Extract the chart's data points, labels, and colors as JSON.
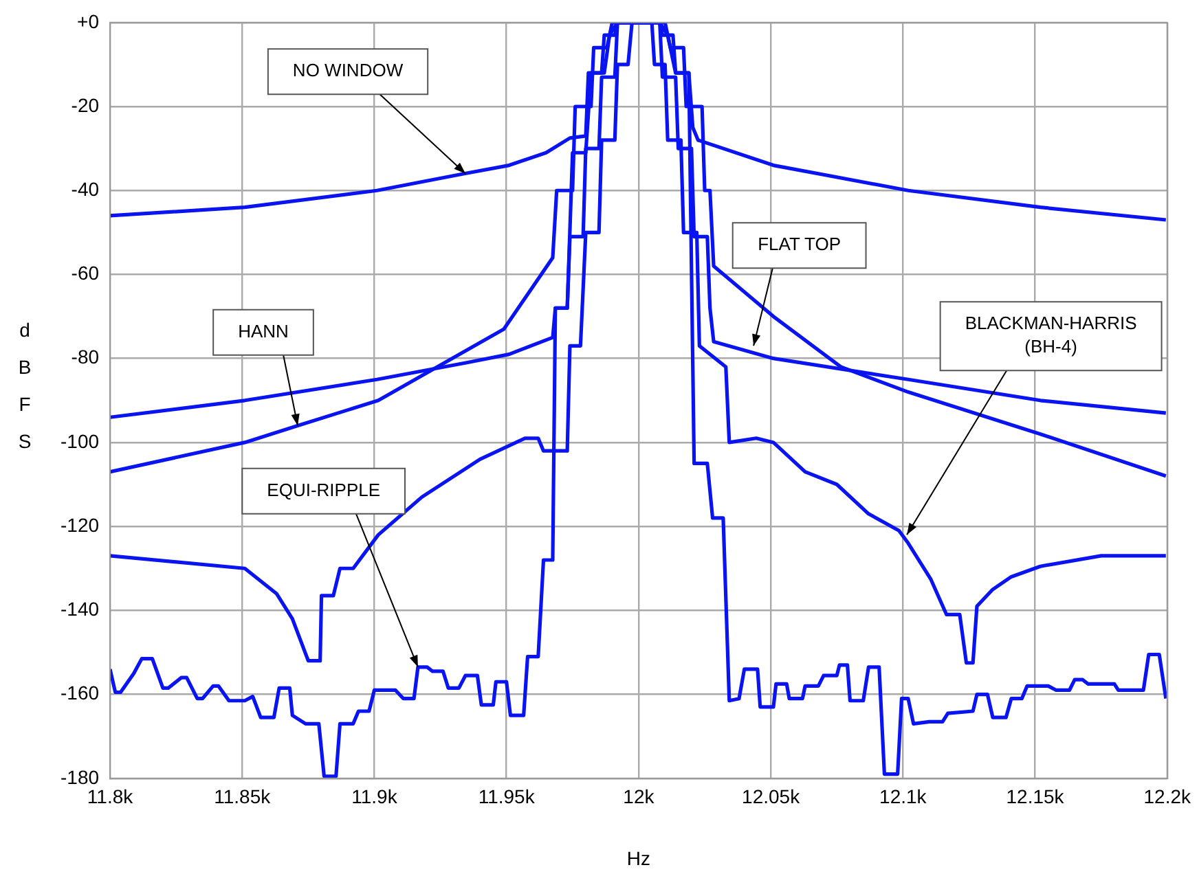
{
  "chart_data": {
    "type": "line",
    "xlabel": "Hz",
    "ylabel": "dBFS",
    "xlim": [
      11800,
      12200
    ],
    "ylim": [
      -180,
      0
    ],
    "xticks": [
      {
        "value": 11800,
        "label": "11.8k"
      },
      {
        "value": 11850,
        "label": "11.85k"
      },
      {
        "value": 11900,
        "label": "11.9k"
      },
      {
        "value": 11950,
        "label": "11.95k"
      },
      {
        "value": 12000,
        "label": "12k"
      },
      {
        "value": 12050,
        "label": "12.05k"
      },
      {
        "value": 12100,
        "label": "12.1k"
      },
      {
        "value": 12150,
        "label": "12.15k"
      },
      {
        "value": 12200,
        "label": "12.2k"
      }
    ],
    "yticks": [
      {
        "value": 0,
        "label": "+0"
      },
      -20,
      -40,
      -60,
      -80,
      -100,
      -120,
      -140,
      -160,
      -180
    ],
    "grid": true,
    "legend": false,
    "series": [
      {
        "color": "#0a14f0",
        "x": [
          11800,
          11851,
          11901,
          11934,
          11951,
          11965,
          11974,
          11980,
          11981,
          11986,
          11987,
          11991,
          11992,
          12008,
          12009,
          12013,
          12014,
          12019,
          12020.5,
          12022.5,
          12051,
          12102,
          12152,
          12199.5
        ],
        "values": [
          -46,
          -44,
          -40,
          -36,
          -34,
          -31,
          -27.5,
          -27,
          -12,
          -12,
          -3,
          -3,
          0,
          0,
          -3,
          -3,
          -12,
          -12,
          -25,
          -28,
          -34,
          -40,
          -44,
          -47
        ]
      },
      {
        "color": "#0a14f0",
        "x": [
          11800,
          11851,
          11901,
          11935,
          11951,
          11967.5,
          11968.5,
          11973,
          11974,
          11979,
          11980,
          11985,
          11986,
          11991,
          11992,
          12008,
          12009,
          12014,
          12015,
          12020,
          12021,
          12026,
          12027,
          12028.4,
          12051,
          12102,
          12152,
          12199.5
        ],
        "values": [
          -94,
          -90,
          -85,
          -81,
          -79,
          -75,
          -68,
          -68,
          -51,
          -51,
          -30,
          -30,
          -13,
          -13,
          0,
          0,
          -13,
          -13,
          -30,
          -30,
          -51,
          -51,
          -68,
          -76,
          -80,
          -85,
          -90,
          -93
        ]
      },
      {
        "color": "#0a14f0",
        "x": [
          11800,
          11851,
          11871,
          11901.5,
          11949,
          11967.5,
          11969,
          11975,
          11976,
          11982,
          11983,
          11988,
          11990,
          12010,
          12012,
          12017,
          12018,
          12024,
          12025,
          12027,
          12028.4,
          12051,
          12076.5,
          12102,
          12152,
          12199.5
        ],
        "values": [
          -107,
          -100,
          -96,
          -90,
          -73,
          -56,
          -40,
          -40,
          -20,
          -20,
          -6,
          -6,
          0,
          0,
          -6,
          -6,
          -20,
          -20,
          -40,
          -40,
          -58,
          -70,
          -82,
          -88,
          -98,
          -108
        ]
      },
      {
        "color": "#0a14f0",
        "x": [
          11800,
          11851,
          11863,
          11869,
          11875,
          11879.5,
          11880,
          11884.5,
          11887,
          11892,
          11901.5,
          11918,
          11940,
          11957,
          11962,
          11964,
          11967.5,
          11973,
          11974,
          11978,
          11980,
          11985,
          11986,
          11991,
          11992,
          11996,
          11997.5,
          12005,
          12006,
          12010,
          12011,
          12016,
          12017,
          12022,
          12023,
          12033,
          12034.3,
          12044.5,
          12051,
          12063,
          12075,
          12087,
          12098.5,
          12102,
          12110.5,
          12116.5,
          12121.5,
          12124,
          12126.5,
          12128,
          12134,
          12141,
          12152,
          12175,
          12199.5
        ],
        "values": [
          -127,
          -130,
          -136,
          -142,
          -152,
          -152,
          -136.5,
          -136.5,
          -130,
          -130,
          -122,
          -113,
          -104,
          -99,
          -99,
          -102,
          -102,
          -102,
          -77,
          -77,
          -50,
          -50,
          -28,
          -28,
          -10,
          -10,
          0,
          0,
          -10,
          -10,
          -28,
          -28,
          -50,
          -50,
          -77,
          -82,
          -100,
          -99,
          -100,
          -107,
          -110,
          -117,
          -121,
          -124,
          -132.5,
          -141,
          -141,
          -152.5,
          -152.5,
          -139,
          -135,
          -132,
          -129.5,
          -127,
          -127
        ]
      },
      {
        "color": "#0a14f0",
        "x": [
          11800,
          11802,
          11804,
          11809,
          11812,
          11816,
          11820,
          11822,
          11827,
          11829,
          11833,
          11835,
          11839,
          11841,
          11845,
          11851,
          11854,
          11857,
          11862,
          11864,
          11868,
          11869,
          11874,
          11879,
          11881,
          11885.5,
          11887,
          11892,
          11894,
          11898,
          11900,
          11908,
          11911,
          11915,
          11916.5,
          11920,
          11922,
          11926,
          11928,
          11932,
          11934.5,
          11939,
          11940.5,
          11945,
          11946,
          11950,
          11951.5,
          11956.5,
          11958,
          11962,
          11964,
          11967.5,
          11968.5,
          11973,
          11975,
          11980,
          11982,
          11987,
          11989,
          11992,
          12008,
          12011,
          12014,
          12019,
          12021,
          12026,
          12028,
          12032,
          12034.3,
          12038,
          12040,
          12045,
          12046,
          12051,
          12052,
          12056,
          12057,
          12062,
          12063,
          12068,
          12070,
          12075,
          12076,
          12079,
          12080,
          12085,
          12087,
          12091,
          12093,
          12098,
          12099.5,
          12102,
          12104,
          12110,
          12115,
          12117,
          12126.5,
          12128,
          12132,
          12134,
          12139,
          12141,
          12145,
          12147,
          12155,
          12158,
          12163,
          12165,
          12168,
          12170,
          12180,
          12181.5,
          12191,
          12193,
          12197,
          12199.5
        ],
        "values": [
          -154,
          -159.5,
          -159.5,
          -155,
          -151.5,
          -151.5,
          -158.5,
          -158.5,
          -156,
          -156,
          -161,
          -161,
          -158,
          -158,
          -161.5,
          -161.5,
          -160.5,
          -165.5,
          -165.5,
          -158.5,
          -158.5,
          -165,
          -167,
          -167,
          -179.5,
          -179.5,
          -167,
          -167,
          -164,
          -164,
          -159,
          -159,
          -161,
          -161,
          -153.5,
          -153.5,
          -154.5,
          -154.5,
          -158.5,
          -158.5,
          -155.5,
          -155.5,
          -162.5,
          -162.5,
          -157,
          -157,
          -165,
          -165,
          -151,
          -151,
          -128,
          -128,
          -68,
          -68,
          -31,
          -31,
          -12,
          -12,
          -3,
          0,
          0,
          -3,
          -12,
          -12,
          -105,
          -105,
          -118,
          -118,
          -161.5,
          -161,
          -154,
          -154,
          -163,
          -163,
          -157.5,
          -157.5,
          -161,
          -161,
          -158,
          -158,
          -155.5,
          -155.5,
          -153,
          -153,
          -161.5,
          -161.5,
          -153.5,
          -153.5,
          -179,
          -179,
          -161,
          -161,
          -167,
          -166.5,
          -166.5,
          -164.5,
          -164,
          -160,
          -160,
          -165.5,
          -165.5,
          -161,
          -161,
          -158,
          -158,
          -159,
          -159,
          -156.5,
          -156.5,
          -157.5,
          -157.5,
          -159,
          -159,
          -150.5,
          -150.5,
          -161
        ]
      }
    ],
    "annotations": [
      {
        "text": "NO WINDOW",
        "x": 11934.5,
        "y": -36
      },
      {
        "text": "FLAT TOP",
        "x": 12043.5,
        "y": -77
      },
      {
        "text": "HANN",
        "x": 11871,
        "y": -96
      },
      {
        "text": "BLACKMAN-HARRIS\n(BH-4)",
        "x": 12101.5,
        "y": -122
      },
      {
        "text": "EQUI-RIPPLE",
        "x": 11916.5,
        "y": -153.5
      }
    ]
  }
}
